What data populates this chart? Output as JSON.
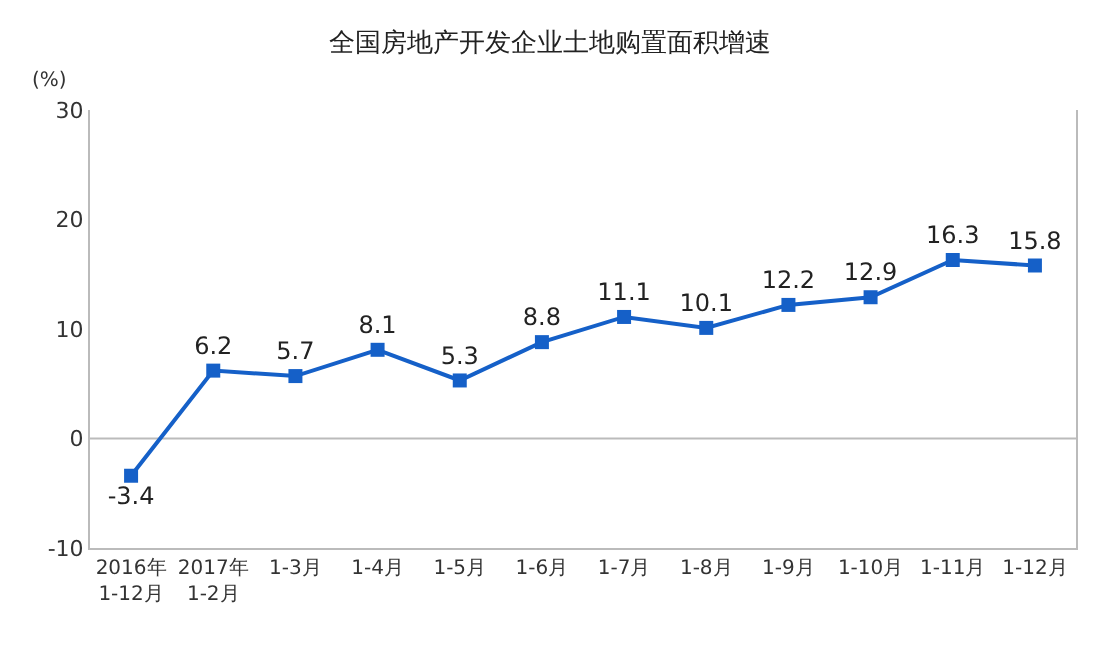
{
  "chart_data": {
    "type": "line",
    "title": "全国房地产开发企业土地购置面积增速",
    "ylabel": "(%)",
    "categories": [
      "2016年\n1-12月",
      "2017年\n1-2月",
      "1-3月",
      "1-4月",
      "1-5月",
      "1-6月",
      "1-7月",
      "1-8月",
      "1-9月",
      "1-10月",
      "1-11月",
      "1-12月"
    ],
    "series": [
      {
        "color": "#1560c8",
        "values": [
          -3.4,
          6.2,
          5.7,
          8.1,
          5.3,
          8.8,
          11.1,
          10.1,
          12.2,
          12.9,
          16.3,
          15.8
        ]
      }
    ],
    "ylim": [
      -10,
      30
    ],
    "yticks": [
      -10,
      0,
      10,
      20,
      30
    ],
    "ref_lines": [
      {
        "axis": "y",
        "value": 0,
        "color": "#bbbbbb"
      }
    ],
    "marker": "square",
    "line_style": "solid",
    "data_labels": true
  }
}
